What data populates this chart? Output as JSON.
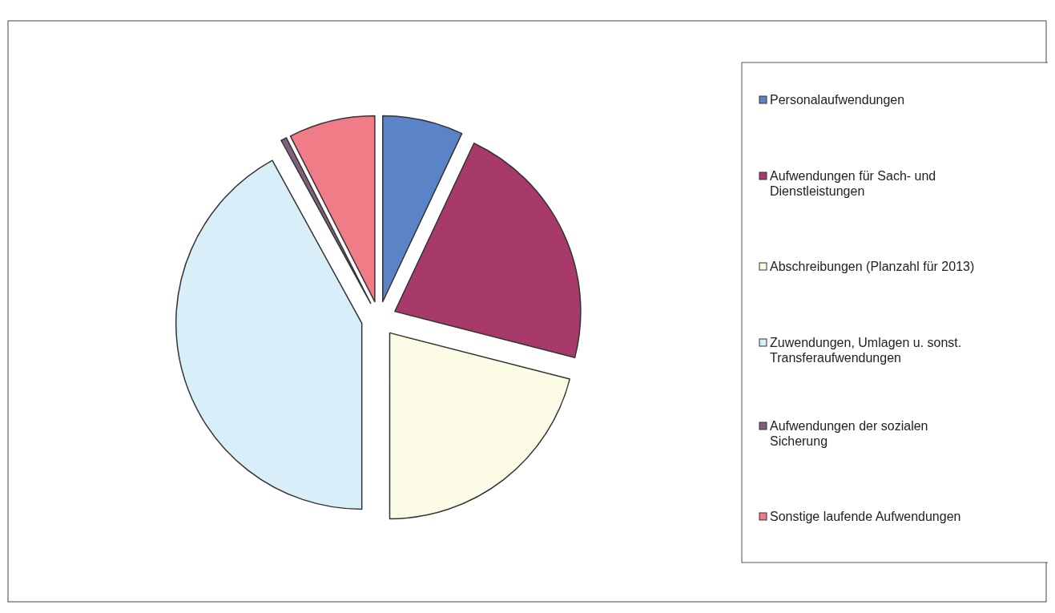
{
  "chart_data": {
    "type": "pie",
    "categories": [
      "Personalaufwendungen",
      "Aufwendungen für Sach- und Dienstleistungen",
      "Abschreibungen (Planzahl für 2013)",
      "Zuwendungen, Umlagen u. sonst. Transferaufwendungen",
      "Aufwendungen der sozialen Sicherung",
      "Sonstige laufende Aufwendungen"
    ],
    "values": [
      7,
      22,
      21,
      42,
      0.5,
      7.5
    ],
    "colors": [
      "#5b84c8",
      "#a83a6a",
      "#fcfce6",
      "#d8eef8",
      "#80607a",
      "#f07c88"
    ],
    "legend": "right"
  }
}
